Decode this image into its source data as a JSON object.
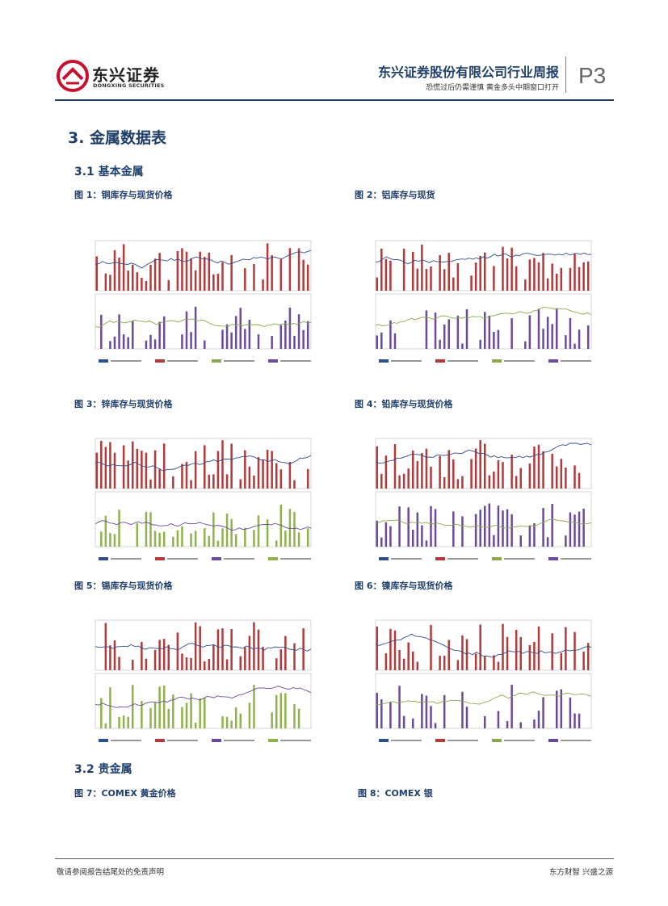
{
  "header": {
    "logo_cn": "东兴证券",
    "logo_en": "DONGXING SECURITIES",
    "title": "东兴证券股份有限公司行业周报",
    "subtitle": "恐慌过后仍需谨慎  黄金多头中期窗口打开",
    "page": "P3"
  },
  "colors": {
    "brand_red": "#c8102e",
    "navy": "#1f3f6b",
    "bar_red": "#b23a3a",
    "bar_purple": "#6b4a9c",
    "bar_green": "#8fb34a",
    "line_blue": "#2f4e8c",
    "line_green": "#8aa84a"
  },
  "sections": {
    "main": "3. 金属数据表",
    "base": "3.1  基本金属",
    "precious": "3.2  贵金属"
  },
  "figures": [
    {
      "caption": "图 1：铜库存与现货价格"
    },
    {
      "caption": "图 2：铝库存与现货"
    },
    {
      "caption": "图 3：锌库存与现货价格"
    },
    {
      "caption": "图 4：铅库存与现货价格"
    },
    {
      "caption": "图 5：锡库存与现货价格"
    },
    {
      "caption": "图 6：镍库存与现货价格"
    },
    {
      "caption": "图 7：COMEX 黄金价格"
    },
    {
      "caption": "图 8：COMEX 银"
    }
  ],
  "footer": {
    "left": "敬请参阅报告结尾处的免责声明",
    "right": "东方财智  兴盛之源"
  }
}
